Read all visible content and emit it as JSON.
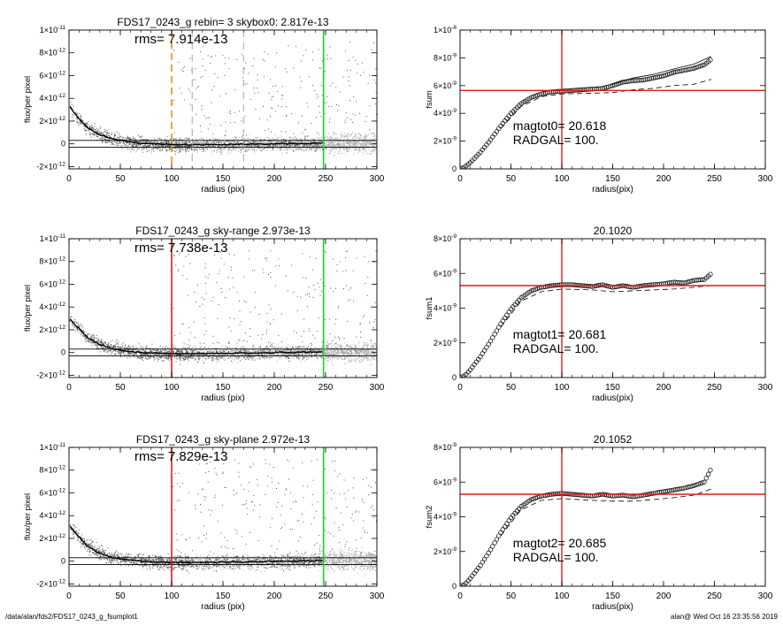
{
  "footer": {
    "path": "/data/alan/fds2/FDS17_0243_g_fsumplot1",
    "user_date": "alan@  Wed Oct 16 23:35:56 2019"
  },
  "colors": {
    "axis": "#000000",
    "scatter_dark": "#555555",
    "scatter_light": "#a8a8a8",
    "profile": "#000000",
    "red": "#dd1c1c",
    "green": "#1ed21e",
    "orange": "#f08c14",
    "dashed_gray": "#9a9a9a",
    "curve": "#000000"
  },
  "chart_data": [
    {
      "type": "scatter",
      "panel": "left-top",
      "title": "FDS17_0243_g rebin= 3    skybox0:  2.817e-13",
      "annotation": "rms= 7.914e-13",
      "xlabel": "radius (pix)",
      "ylabel": "flux/per pixel",
      "xlim": [
        0,
        300
      ],
      "ylim": [
        -2.2e-12,
        1e-11
      ],
      "xticks": [
        0,
        50,
        100,
        150,
        200,
        250,
        300
      ],
      "yticks": [
        {
          "v": -2e-12,
          "m": "-2",
          "e": "-12"
        },
        {
          "v": 0,
          "m": "0",
          "e": ""
        },
        {
          "v": 2e-12,
          "m": "2",
          "e": "-12"
        },
        {
          "v": 4e-12,
          "m": "4",
          "e": "-12"
        },
        {
          "v": 6e-12,
          "m": "6",
          "e": "-12"
        },
        {
          "v": 8e-12,
          "m": "8",
          "e": "-12"
        },
        {
          "v": 1e-11,
          "m": "1",
          "e": "-11",
          "pre": "1×"
        }
      ],
      "hlines": [
        3e-13,
        -3e-13
      ],
      "vlines": [
        {
          "x": 100,
          "color": "orange",
          "dash": true
        },
        {
          "x": 120,
          "color": "dashed_gray",
          "dash": true
        },
        {
          "x": 170,
          "color": "dashed_gray",
          "dash": true
        },
        {
          "x": 248,
          "color": "green",
          "dash": false
        }
      ],
      "profile": [
        [
          1,
          3.3e-12
        ],
        [
          5,
          2.7e-12
        ],
        [
          10,
          2.2e-12
        ],
        [
          15,
          1.7e-12
        ],
        [
          20,
          1.3e-12
        ],
        [
          30,
          8e-13
        ],
        [
          40,
          5e-13
        ],
        [
          50,
          3e-13
        ],
        [
          60,
          1.5e-13
        ],
        [
          70,
          5e-14
        ],
        [
          80,
          0
        ],
        [
          100,
          -5e-14
        ],
        [
          120,
          -8e-14
        ],
        [
          150,
          -6e-14
        ],
        [
          170,
          -5e-14
        ],
        [
          200,
          0
        ],
        [
          230,
          3e-14
        ],
        [
          248,
          6e-14
        ]
      ],
      "noise_light": 1.2e-12
    },
    {
      "type": "scatter",
      "panel": "left-middle",
      "title": "FDS17_0243_g sky-range  2.973e-13",
      "annotation": "rms= 7.738e-13",
      "xlabel": "radius (pix)",
      "ylabel": "flux/per pixel",
      "xlim": [
        0,
        300
      ],
      "ylim": [
        -2.2e-12,
        1e-11
      ],
      "xticks": [
        0,
        50,
        100,
        150,
        200,
        250,
        300
      ],
      "yticks": [
        {
          "v": -2e-12,
          "m": "-2",
          "e": "-12"
        },
        {
          "v": 0,
          "m": "0",
          "e": ""
        },
        {
          "v": 2e-12,
          "m": "2",
          "e": "-12"
        },
        {
          "v": 4e-12,
          "m": "4",
          "e": "-12"
        },
        {
          "v": 6e-12,
          "m": "6",
          "e": "-12"
        },
        {
          "v": 8e-12,
          "m": "8",
          "e": "-12"
        },
        {
          "v": 1e-11,
          "m": "1",
          "e": "-11",
          "pre": "1×"
        }
      ],
      "hlines": [
        3e-13,
        -3e-13
      ],
      "vlines": [
        {
          "x": 100,
          "color": "red",
          "dash": false
        },
        {
          "x": 248,
          "color": "green",
          "dash": false
        }
      ],
      "profile": [
        [
          1,
          3e-12
        ],
        [
          5,
          2.5e-12
        ],
        [
          10,
          2.1e-12
        ],
        [
          15,
          1.6e-12
        ],
        [
          20,
          1.2e-12
        ],
        [
          30,
          7e-13
        ],
        [
          40,
          4e-13
        ],
        [
          50,
          2e-13
        ],
        [
          60,
          1e-13
        ],
        [
          70,
          0
        ],
        [
          80,
          -5e-14
        ],
        [
          100,
          -1e-13
        ],
        [
          120,
          -1e-13
        ],
        [
          150,
          -8e-14
        ],
        [
          170,
          -6e-14
        ],
        [
          200,
          0
        ],
        [
          230,
          3e-14
        ],
        [
          248,
          5e-14
        ]
      ],
      "noise_light": 1.2e-12
    },
    {
      "type": "scatter",
      "panel": "left-bottom",
      "title": "FDS17_0243_g sky-plane  2.972e-13",
      "annotation": "rms= 7.829e-13",
      "xlabel": "radius (pix)",
      "ylabel": "flux/per pixel",
      "xlim": [
        0,
        300
      ],
      "ylim": [
        -2.2e-12,
        1e-11
      ],
      "xticks": [
        0,
        50,
        100,
        150,
        200,
        250,
        300
      ],
      "yticks": [
        {
          "v": -2e-12,
          "m": "-2",
          "e": "-12"
        },
        {
          "v": 0,
          "m": "0",
          "e": ""
        },
        {
          "v": 2e-12,
          "m": "2",
          "e": "-12"
        },
        {
          "v": 4e-12,
          "m": "4",
          "e": "-12"
        },
        {
          "v": 6e-12,
          "m": "6",
          "e": "-12"
        },
        {
          "v": 8e-12,
          "m": "8",
          "e": "-12"
        },
        {
          "v": 1e-11,
          "m": "1",
          "e": "-11",
          "pre": "1×"
        }
      ],
      "hlines": [
        3e-13,
        -3e-13
      ],
      "vlines": [
        {
          "x": 100,
          "color": "red",
          "dash": false
        },
        {
          "x": 248,
          "color": "green",
          "dash": false
        }
      ],
      "profile": [
        [
          1,
          3.1e-12
        ],
        [
          5,
          2.6e-12
        ],
        [
          10,
          2.1e-12
        ],
        [
          15,
          1.6e-12
        ],
        [
          20,
          1.2e-12
        ],
        [
          30,
          7e-13
        ],
        [
          40,
          4e-13
        ],
        [
          50,
          2e-13
        ],
        [
          60,
          1e-13
        ],
        [
          70,
          0
        ],
        [
          80,
          -5e-14
        ],
        [
          100,
          -1e-13
        ],
        [
          120,
          -1e-13
        ],
        [
          150,
          -8e-14
        ],
        [
          170,
          -6e-14
        ],
        [
          200,
          0
        ],
        [
          230,
          3e-14
        ],
        [
          248,
          6e-14
        ]
      ],
      "noise_light": 1.2e-12
    },
    {
      "type": "line",
      "panel": "right-top",
      "title": "",
      "xlabel": "radius(pix)",
      "ylabel": "fsum",
      "xlim": [
        0,
        300
      ],
      "ylim": [
        0,
        1e-08
      ],
      "xticks": [
        0,
        50,
        100,
        150,
        200,
        250,
        300
      ],
      "yticks": [
        {
          "v": 0,
          "m": "0",
          "e": ""
        },
        {
          "v": 2e-09,
          "m": "2",
          "e": "-9"
        },
        {
          "v": 4e-09,
          "m": "4",
          "e": "-9"
        },
        {
          "v": 6e-09,
          "m": "6",
          "e": "-9"
        },
        {
          "v": 8e-09,
          "m": "8",
          "e": "-9"
        },
        {
          "v": 1e-08,
          "m": "1",
          "e": "-8",
          "pre": "1×"
        }
      ],
      "annotations": [
        "magtot0=  20.618",
        "RADGAL=    100."
      ],
      "crosshair": {
        "x": 100,
        "y": 5.65e-09
      },
      "curve": [
        [
          0,
          0
        ],
        [
          5,
          1.5e-10
        ],
        [
          10,
          4.5e-10
        ],
        [
          20,
          1.2e-09
        ],
        [
          30,
          2.1e-09
        ],
        [
          40,
          3.1e-09
        ],
        [
          50,
          4e-09
        ],
        [
          60,
          4.7e-09
        ],
        [
          70,
          5.15e-09
        ],
        [
          80,
          5.4e-09
        ],
        [
          90,
          5.55e-09
        ],
        [
          100,
          5.6e-09
        ],
        [
          110,
          5.65e-09
        ],
        [
          120,
          5.7e-09
        ],
        [
          130,
          5.75e-09
        ],
        [
          140,
          5.8e-09
        ],
        [
          150,
          6e-09
        ],
        [
          160,
          6.25e-09
        ],
        [
          170,
          6.35e-09
        ],
        [
          180,
          6.4e-09
        ],
        [
          190,
          6.55e-09
        ],
        [
          200,
          6.7e-09
        ],
        [
          210,
          6.95e-09
        ],
        [
          220,
          7.1e-09
        ],
        [
          230,
          7.25e-09
        ],
        [
          240,
          7.5e-09
        ],
        [
          247,
          7.9e-09
        ]
      ],
      "curve_upper": [
        [
          150,
          6.1e-09
        ],
        [
          170,
          6.55e-09
        ],
        [
          190,
          6.8e-09
        ],
        [
          210,
          7.2e-09
        ],
        [
          230,
          7.55e-09
        ],
        [
          247,
          8.1e-09
        ]
      ],
      "curve_dashed": [
        [
          40,
          2.9e-09
        ],
        [
          60,
          4.5e-09
        ],
        [
          80,
          5.2e-09
        ],
        [
          100,
          5.4e-09
        ],
        [
          130,
          5.45e-09
        ],
        [
          150,
          5.5e-09
        ],
        [
          170,
          5.7e-09
        ],
        [
          190,
          5.8e-09
        ],
        [
          210,
          6e-09
        ],
        [
          230,
          6.1e-09
        ],
        [
          247,
          6.45e-09
        ]
      ]
    },
    {
      "type": "line",
      "panel": "right-middle",
      "title": "20.1020",
      "xlabel": "radius(pix)",
      "ylabel": "fsum1",
      "xlim": [
        0,
        300
      ],
      "ylim": [
        0,
        8e-09
      ],
      "xticks": [
        0,
        50,
        100,
        150,
        200,
        250,
        300
      ],
      "yticks": [
        {
          "v": 0,
          "m": "0",
          "e": ""
        },
        {
          "v": 2e-09,
          "m": "2",
          "e": "-9"
        },
        {
          "v": 4e-09,
          "m": "4",
          "e": "-9"
        },
        {
          "v": 6e-09,
          "m": "6",
          "e": "-9"
        },
        {
          "v": 8e-09,
          "m": "8",
          "e": "-9"
        }
      ],
      "annotations": [
        "magtot1=  20.681",
        "RADGAL=    100."
      ],
      "crosshair": {
        "x": 100,
        "y": 5.3e-09
      },
      "curve": [
        [
          0,
          0
        ],
        [
          5,
          1.2e-10
        ],
        [
          10,
          4.5e-10
        ],
        [
          20,
          1.2e-09
        ],
        [
          30,
          2.1e-09
        ],
        [
          40,
          3.1e-09
        ],
        [
          50,
          3.95e-09
        ],
        [
          60,
          4.6e-09
        ],
        [
          70,
          5e-09
        ],
        [
          80,
          5.2e-09
        ],
        [
          90,
          5.3e-09
        ],
        [
          100,
          5.35e-09
        ],
        [
          110,
          5.35e-09
        ],
        [
          120,
          5.3e-09
        ],
        [
          130,
          5.25e-09
        ],
        [
          140,
          5.35e-09
        ],
        [
          150,
          5.2e-09
        ],
        [
          160,
          5.3e-09
        ],
        [
          170,
          5.2e-09
        ],
        [
          180,
          5.3e-09
        ],
        [
          190,
          5.35e-09
        ],
        [
          200,
          5.4e-09
        ],
        [
          210,
          5.5e-09
        ],
        [
          220,
          5.45e-09
        ],
        [
          230,
          5.6e-09
        ],
        [
          240,
          5.65e-09
        ],
        [
          247,
          6e-09
        ]
      ],
      "curve_dashed": [
        [
          40,
          2.9e-09
        ],
        [
          60,
          4.4e-09
        ],
        [
          80,
          4.95e-09
        ],
        [
          100,
          5.1e-09
        ],
        [
          130,
          5.05e-09
        ],
        [
          150,
          4.95e-09
        ],
        [
          170,
          5e-09
        ],
        [
          190,
          5.05e-09
        ],
        [
          210,
          5.1e-09
        ],
        [
          230,
          5.2e-09
        ],
        [
          247,
          5.3e-09
        ]
      ]
    },
    {
      "type": "line",
      "panel": "right-bottom",
      "title": "20.1052",
      "xlabel": "radius(pix)",
      "ylabel": "fsum2",
      "xlim": [
        0,
        300
      ],
      "ylim": [
        0,
        8e-09
      ],
      "xticks": [
        0,
        50,
        100,
        150,
        200,
        250,
        300
      ],
      "yticks": [
        {
          "v": 0,
          "m": "0",
          "e": ""
        },
        {
          "v": 2e-09,
          "m": "2",
          "e": "-9"
        },
        {
          "v": 4e-09,
          "m": "4",
          "e": "-9"
        },
        {
          "v": 6e-09,
          "m": "6",
          "e": "-9"
        },
        {
          "v": 8e-09,
          "m": "8",
          "e": "-9"
        }
      ],
      "annotations": [
        "magtot2=  20.685",
        "RADGAL=    100."
      ],
      "crosshair": {
        "x": 100,
        "y": 5.3e-09
      },
      "curve": [
        [
          0,
          0
        ],
        [
          5,
          1.2e-10
        ],
        [
          10,
          4.5e-10
        ],
        [
          20,
          1.2e-09
        ],
        [
          30,
          2.1e-09
        ],
        [
          40,
          3.1e-09
        ],
        [
          50,
          3.95e-09
        ],
        [
          60,
          4.6e-09
        ],
        [
          70,
          5e-09
        ],
        [
          80,
          5.2e-09
        ],
        [
          90,
          5.3e-09
        ],
        [
          100,
          5.35e-09
        ],
        [
          110,
          5.3e-09
        ],
        [
          120,
          5.25e-09
        ],
        [
          130,
          5.2e-09
        ],
        [
          140,
          5.3e-09
        ],
        [
          150,
          5.2e-09
        ],
        [
          160,
          5.25e-09
        ],
        [
          170,
          5.15e-09
        ],
        [
          180,
          5.25e-09
        ],
        [
          190,
          5.35e-09
        ],
        [
          200,
          5.45e-09
        ],
        [
          210,
          5.55e-09
        ],
        [
          220,
          5.65e-09
        ],
        [
          230,
          5.8e-09
        ],
        [
          240,
          6e-09
        ],
        [
          247,
          6.8e-09
        ]
      ],
      "curve_dashed": [
        [
          40,
          2.9e-09
        ],
        [
          60,
          4.4e-09
        ],
        [
          80,
          4.95e-09
        ],
        [
          100,
          5.05e-09
        ],
        [
          130,
          4.95e-09
        ],
        [
          150,
          4.9e-09
        ],
        [
          170,
          4.9e-09
        ],
        [
          190,
          5e-09
        ],
        [
          210,
          5.1e-09
        ],
        [
          230,
          5.25e-09
        ],
        [
          247,
          5.6e-09
        ]
      ]
    }
  ]
}
